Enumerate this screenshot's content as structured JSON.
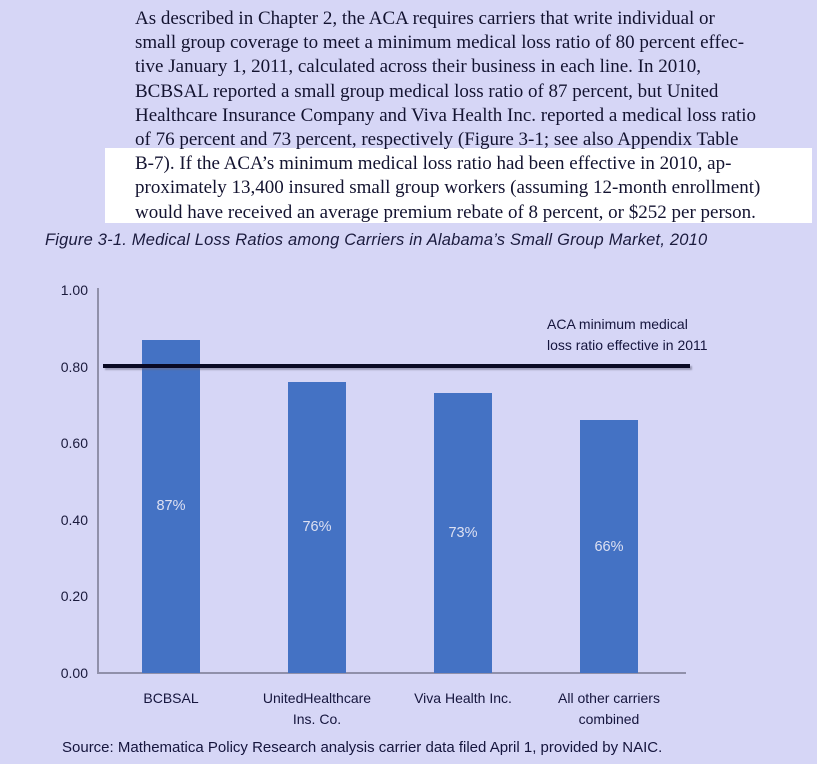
{
  "colors": {
    "background": "#d6d6f6",
    "highlight": "#ffffff",
    "bar": "#4472c4",
    "bar_label_text": "#dde0f2",
    "reference_line": "#0a0a24",
    "axis": "#9090aa",
    "text": "#15153d"
  },
  "paragraph": {
    "lines": [
      {
        "text": "As described in Chapter 2, the ACA requires carriers that write individual or",
        "highlighted": false
      },
      {
        "text": "small group coverage to meet a minimum medical loss ratio of 80 percent effec-",
        "highlighted": false
      },
      {
        "text": "tive January 1, 2011, calculated across their business in each line. In 2010,",
        "highlighted": false
      },
      {
        "text": "BCBSAL reported a small group medical loss ratio of 87 percent, but United",
        "highlighted": false
      },
      {
        "text": "Healthcare Insurance Company and Viva Health Inc. reported a medical loss ratio",
        "highlighted": false
      },
      {
        "text": "of 76 percent and 73 percent, respectively (Figure 3-1; see also Appendix Table",
        "highlighted": false
      },
      {
        "text": "B-7). If the ACA’s minimum medical loss ratio had been effective in 2010, ap-",
        "highlighted": true
      },
      {
        "text": "proximately 13,400 insured small group workers (assuming 12-month enrollment)",
        "highlighted": true
      },
      {
        "text": "would have received an average premium rebate of 8 percent, or $252 per person.",
        "highlighted": true
      }
    ]
  },
  "figure": {
    "caption": "Figure 3-1. Medical Loss Ratios among Carriers in Alabama’s Small Group Market, 2010",
    "source": "Source: Mathematica Policy Research analysis carrier data filed April 1, provided by NAIC."
  },
  "chart_data": {
    "type": "bar",
    "title": "Figure 3-1. Medical Loss Ratios among Carriers in Alabama’s Small Group Market, 2010",
    "categories": [
      "BCBSAL",
      "UnitedHealthcare Ins. Co.",
      "Viva Health Inc.",
      "All other carriers combined"
    ],
    "category_label_lines": [
      [
        "BCBSAL"
      ],
      [
        "UnitedHealthcare",
        "Ins. Co."
      ],
      [
        "Viva Health Inc."
      ],
      [
        "All other carriers",
        "combined"
      ]
    ],
    "values": [
      0.87,
      0.76,
      0.73,
      0.66
    ],
    "bar_labels": [
      "87%",
      "76%",
      "73%",
      "66%"
    ],
    "xlabel": "",
    "ylabel": "",
    "ylim": [
      0,
      1.0
    ],
    "yticks": [
      "1.00",
      "0.80",
      "0.60",
      "0.40",
      "0.20",
      "0.00"
    ],
    "ytick_values": [
      1.0,
      0.8,
      0.6,
      0.4,
      0.2,
      0.0
    ],
    "grid": false,
    "legend": "none",
    "reference_line": {
      "value": 0.8,
      "label_lines": [
        "ACA minimum medical",
        "loss ratio effective in 2011"
      ]
    }
  }
}
